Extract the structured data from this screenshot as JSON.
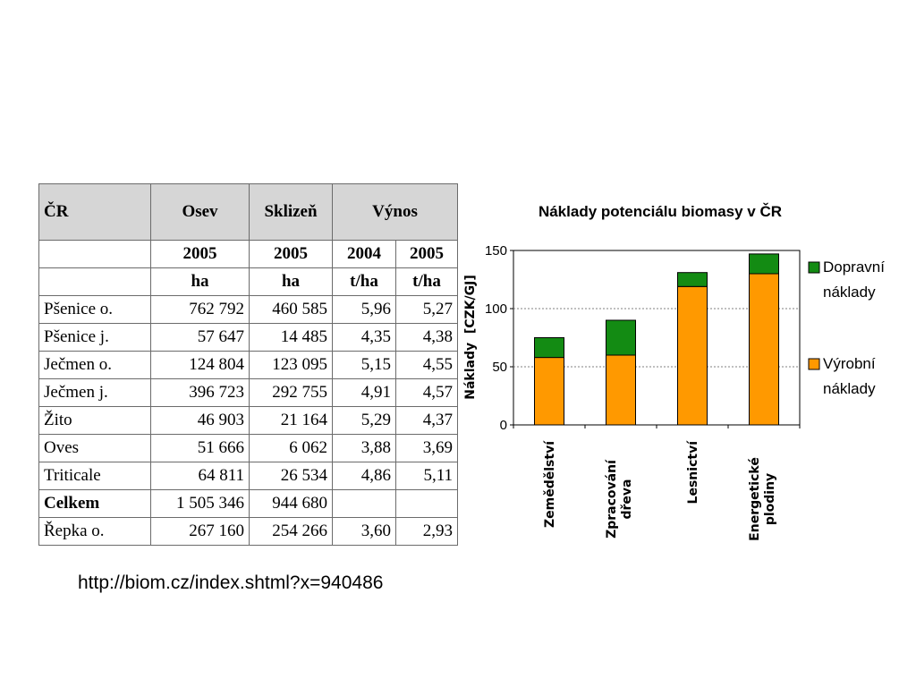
{
  "table": {
    "headers": [
      "ČR",
      "Osev",
      "Sklizeň",
      "Výnos"
    ],
    "years": [
      "2005",
      "2005",
      "2004",
      "2005"
    ],
    "units": [
      "ha",
      "ha",
      "t/ha",
      "t/ha"
    ],
    "rows": [
      {
        "name": "Pšenice o.",
        "osev": "762 792",
        "sklizen": "460 585",
        "vynos2004": "5,96",
        "vynos2005": "5,27"
      },
      {
        "name": "Pšenice j.",
        "osev": "57 647",
        "sklizen": "14 485",
        "vynos2004": "4,35",
        "vynos2005": "4,38"
      },
      {
        "name": "Ječmen o.",
        "osev": "124 804",
        "sklizen": "123 095",
        "vynos2004": "5,15",
        "vynos2005": "4,55"
      },
      {
        "name": "Ječmen j.",
        "osev": "396 723",
        "sklizen": "292 755",
        "vynos2004": "4,91",
        "vynos2005": "4,57"
      },
      {
        "name": "Žito",
        "osev": "46 903",
        "sklizen": "21 164",
        "vynos2004": "5,29",
        "vynos2005": "4,37"
      },
      {
        "name": "Oves",
        "osev": "51 666",
        "sklizen": "6 062",
        "vynos2004": "3,88",
        "vynos2005": "3,69"
      },
      {
        "name": "Triticale",
        "osev": "64 811",
        "sklizen": "26 534",
        "vynos2004": "4,86",
        "vynos2005": "5,11"
      },
      {
        "name": "Celkem",
        "osev": "1 505 346",
        "sklizen": "944 680",
        "vynos2004": "",
        "vynos2005": "",
        "bold": true
      },
      {
        "name": "Řepka o.",
        "osev": "267 160",
        "sklizen": "254 266",
        "vynos2004": "3,60",
        "vynos2005": "2,93"
      }
    ]
  },
  "source_url": "http://biom.cz/index.shtml?x=940486",
  "colors": {
    "vyrobni": "#ff9900",
    "dopravni": "#138b13",
    "grid": "#808080"
  },
  "chart_data": {
    "type": "bar",
    "stacked": true,
    "title": "Náklady potenciálu biomasy v ČR",
    "ylabel": "Náklady  [CZK/GJ]",
    "xlabel": "",
    "ylim": [
      0,
      150
    ],
    "yticks": [
      0,
      50,
      100,
      150
    ],
    "grid": "horizontal dotted",
    "legend_position": "right",
    "categories": [
      [
        "Zemědělství"
      ],
      [
        "Zpracování",
        "dřeva"
      ],
      [
        "Lesnictví"
      ],
      [
        "Energetické",
        "plodiny"
      ]
    ],
    "series": [
      {
        "name": [
          "Výrobní",
          "náklady"
        ],
        "color": "#ff9900",
        "values": [
          58,
          60,
          119,
          130
        ]
      },
      {
        "name": [
          "Dopravní",
          "náklady"
        ],
        "color": "#138b13",
        "values": [
          17,
          30,
          12,
          17
        ]
      }
    ]
  }
}
